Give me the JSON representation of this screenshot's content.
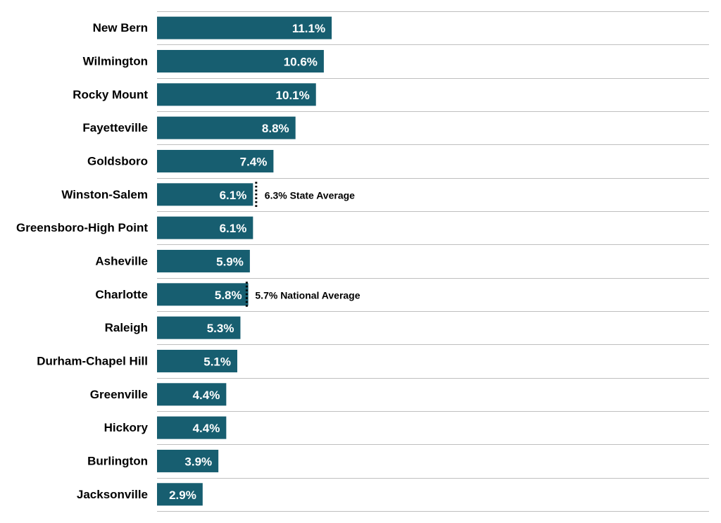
{
  "chart_data": {
    "type": "bar",
    "orientation": "horizontal",
    "categories": [
      "New Bern",
      "Wilmington",
      "Rocky Mount",
      "Fayetteville",
      "Goldsboro",
      "Winston-Salem",
      "Greensboro-High Point",
      "Asheville",
      "Charlotte",
      "Raleigh",
      "Durham-Chapel Hill",
      "Greenville",
      "Hickory",
      "Burlington",
      "Jacksonville"
    ],
    "values": [
      11.1,
      10.6,
      10.1,
      8.8,
      7.4,
      6.1,
      6.1,
      5.9,
      5.8,
      5.3,
      5.1,
      4.4,
      4.4,
      3.9,
      2.9
    ],
    "value_labels": [
      "11.1%",
      "10.6%",
      "10.1%",
      "8.8%",
      "7.4%",
      "6.1%",
      "6.1%",
      "5.9%",
      "5.8%",
      "5.3%",
      "5.1%",
      "4.4%",
      "4.4%",
      "3.9%",
      "2.9%"
    ],
    "bar_color": "#175e70",
    "grid": true,
    "reference_lines": [
      {
        "value": 6.3,
        "label": "6.3% State Average",
        "row": "Winston-Salem"
      },
      {
        "value": 5.7,
        "label": "5.7% National Average",
        "row": "Charlotte"
      }
    ]
  }
}
